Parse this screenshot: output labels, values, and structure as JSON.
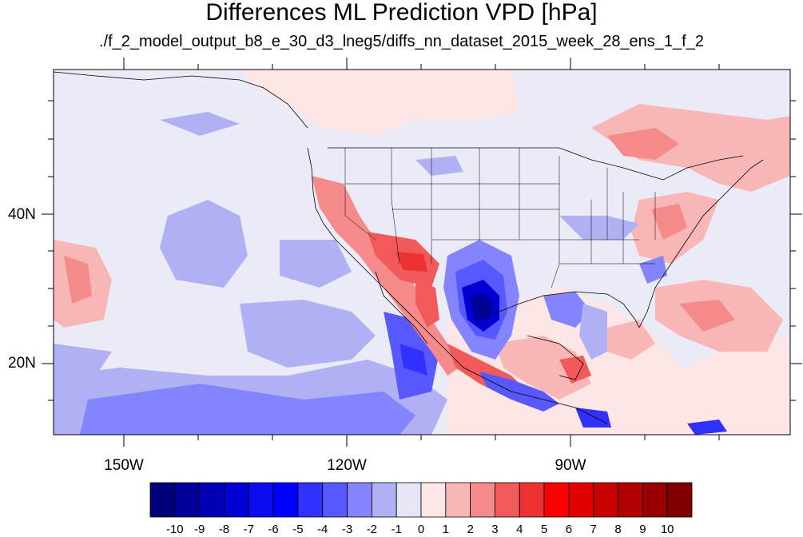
{
  "title": "Differences ML Prediction VPD [hPa]",
  "subtitle": "./f_2_model_output_b8_e_30_d3_lneg5/diffs_nn_dataset_2015_week_28_ens_1_f_2",
  "map": {
    "lat_ticks": [
      "40N",
      "20N"
    ],
    "lon_ticks": [
      "150W",
      "120W",
      "90W"
    ],
    "background_color": "#ebebf8",
    "coastline_color": "#000000"
  },
  "colorbar": {
    "labels": [
      "-10",
      "-9",
      "-8",
      "-7",
      "-6",
      "-5",
      "-4",
      "-3",
      "-2",
      "-1",
      "0",
      "1",
      "2",
      "3",
      "4",
      "5",
      "6",
      "7",
      "8",
      "9",
      "10"
    ],
    "colors": [
      "#00007a",
      "#00009a",
      "#0000b8",
      "#0000d4",
      "#0c0cf0",
      "#0000ff",
      "#3030ff",
      "#5858ff",
      "#8484ff",
      "#b0b0f4",
      "#e6e6f6",
      "#fde6e6",
      "#f8b6b6",
      "#f48a8a",
      "#f05a5a",
      "#ec3232",
      "#fa0000",
      "#e00000",
      "#c80000",
      "#b00000",
      "#980000",
      "#800000"
    ]
  }
}
